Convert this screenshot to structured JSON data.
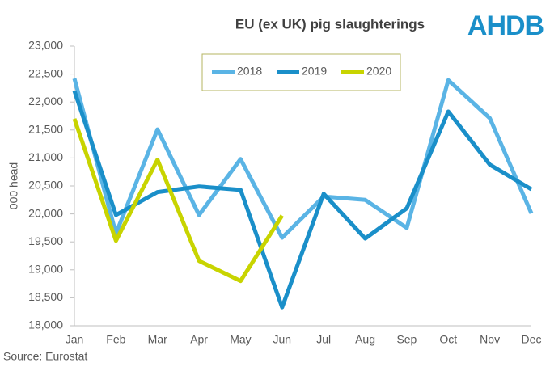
{
  "logo": "AHDB",
  "source": "Source: Eurostat",
  "chart_data": {
    "type": "line",
    "title": "EU (ex UK) pig slaughterings",
    "ylabel": "000 head",
    "categories": [
      "Jan",
      "Feb",
      "Mar",
      "Apr",
      "May",
      "Jun",
      "Jul",
      "Aug",
      "Sep",
      "Oct",
      "Nov",
      "Dec"
    ],
    "series": [
      {
        "name": "2018",
        "color": "#5ab4e5",
        "values": [
          22420,
          19650,
          21510,
          19980,
          20980,
          19575,
          20310,
          20250,
          19750,
          22390,
          21710,
          20010
        ]
      },
      {
        "name": "2019",
        "color": "#1a8fc9",
        "values": [
          22200,
          19980,
          20390,
          20490,
          20430,
          18330,
          20360,
          19560,
          20100,
          21830,
          20880,
          20440
        ]
      },
      {
        "name": "2020",
        "color": "#c8d400",
        "values": [
          21700,
          19520,
          20970,
          19160,
          18800,
          19970,
          null,
          null,
          null,
          null,
          null,
          null
        ]
      }
    ],
    "ylim": [
      18000,
      23000
    ],
    "yticks": [
      {
        "value": 18000,
        "label": "18,000"
      },
      {
        "value": 18500,
        "label": "18,500"
      },
      {
        "value": 19000,
        "label": "19,000"
      },
      {
        "value": 19500,
        "label": "19,500"
      },
      {
        "value": 20000,
        "label": "20,000"
      },
      {
        "value": 20500,
        "label": "20,500"
      },
      {
        "value": 21000,
        "label": "21,000"
      },
      {
        "value": 21500,
        "label": "21,500"
      },
      {
        "value": 22000,
        "label": "22,000"
      },
      {
        "value": 22500,
        "label": "22,500"
      },
      {
        "value": 23000,
        "label": "23,000"
      }
    ],
    "grid": false,
    "legend": "top"
  }
}
